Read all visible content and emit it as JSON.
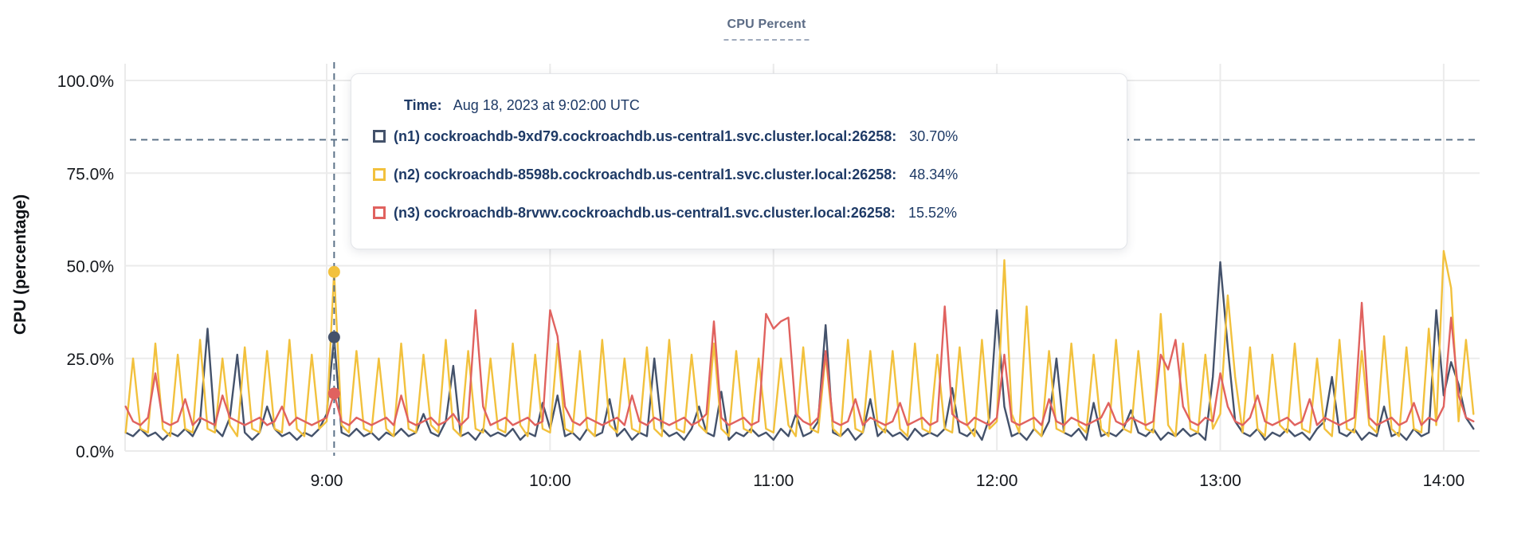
{
  "title": "CPU Percent",
  "y_axis": {
    "title": "CPU (percentage)"
  },
  "tooltip": {
    "time_label": "Time:",
    "time_value": "Aug 18, 2023 at 9:02:00 UTC",
    "rows": [
      {
        "id": "n1",
        "label": "(n1) cockroachdb-9xd79.cockroachdb.us-central1.svc.cluster.local:26258:",
        "value": "30.70%",
        "color": "#44526b"
      },
      {
        "id": "n2",
        "label": "(n2) cockroachdb-8598b.cockroachdb.us-central1.svc.cluster.local:26258:",
        "value": "48.34%",
        "color": "#f2c13d"
      },
      {
        "id": "n3",
        "label": "(n3) cockroachdb-8rvwv.cockroachdb.us-central1.svc.cluster.local:26258:",
        "value": "15.52%",
        "color": "#e0625f"
      }
    ]
  },
  "chart_data": {
    "type": "line",
    "title": "CPU Percent",
    "xlabel": "",
    "ylabel": "CPU (percentage)",
    "ylim": [
      0,
      100
    ],
    "grid": true,
    "legend_position": "tooltip",
    "y_ticks": [
      {
        "value": 0,
        "label": "0.0%"
      },
      {
        "value": 25,
        "label": "25.0%"
      },
      {
        "value": 50,
        "label": "50.0%"
      },
      {
        "value": 75,
        "label": "75.0%"
      },
      {
        "value": 100,
        "label": "100.0%"
      }
    ],
    "x_ticks": [
      {
        "minute": 540,
        "label": "9:00"
      },
      {
        "minute": 600,
        "label": "10:00"
      },
      {
        "minute": 660,
        "label": "11:00"
      },
      {
        "minute": 720,
        "label": "12:00"
      },
      {
        "minute": 780,
        "label": "13:00"
      },
      {
        "minute": 840,
        "label": "14:00"
      }
    ],
    "start_minute": 486,
    "step_minutes": 2,
    "cursor": {
      "minute": 542,
      "time_label": "Aug 18, 2023 at 9:02:00 UTC",
      "crosshair_y_percent": 84,
      "values": {
        "n1": 30.7,
        "n2": 48.34,
        "n3": 15.52
      }
    },
    "series": [
      {
        "name": "(n1) cockroachdb-9xd79.cockroachdb.us-central1.svc.cluster.local:26258",
        "color": "#44526b",
        "values": [
          5,
          4,
          6,
          4,
          5,
          3,
          5,
          4,
          6,
          4,
          8,
          33,
          6,
          4,
          9,
          26,
          5,
          3,
          5,
          12,
          6,
          4,
          5,
          3,
          5,
          4,
          6,
          10,
          30.7,
          5,
          4,
          6,
          4,
          5,
          3,
          5,
          4,
          6,
          4,
          5,
          10,
          5,
          4,
          8,
          23,
          4,
          5,
          3,
          6,
          4,
          5,
          4,
          6,
          3,
          5,
          4,
          13,
          6,
          15,
          4,
          5,
          3,
          6,
          4,
          5,
          14,
          4,
          6,
          3,
          5,
          4,
          25,
          6,
          4,
          5,
          3,
          6,
          12,
          5,
          4,
          16,
          3,
          5,
          4,
          6,
          4,
          5,
          3,
          6,
          4,
          10,
          4,
          5,
          8,
          34,
          5,
          4,
          6,
          3,
          5,
          14,
          4,
          6,
          4,
          5,
          3,
          6,
          4,
          5,
          4,
          6,
          17,
          5,
          4,
          6,
          3,
          9,
          38,
          12,
          4,
          5,
          3,
          6,
          4,
          8,
          25,
          5,
          4,
          6,
          3,
          13,
          4,
          5,
          4,
          6,
          11,
          5,
          4,
          6,
          3,
          5,
          4,
          6,
          4,
          5,
          3,
          20,
          51,
          28,
          8,
          5,
          4,
          6,
          3,
          5,
          4,
          6,
          4,
          5,
          3,
          6,
          8,
          20,
          5,
          4,
          6,
          3,
          5,
          4,
          12,
          4,
          5,
          3,
          6,
          4,
          5,
          38,
          15,
          24,
          18,
          9,
          6
        ]
      },
      {
        "name": "(n2) cockroachdb-8598b.cockroachdb.us-central1.svc.cluster.local:26258",
        "color": "#f2c13d",
        "values": [
          5,
          25,
          6,
          5,
          29,
          6,
          4,
          26,
          6,
          5,
          30,
          6,
          5,
          25,
          7,
          4,
          28,
          6,
          5,
          27,
          6,
          5,
          30,
          6,
          4,
          26,
          6,
          8,
          48.3,
          7,
          5,
          27,
          6,
          5,
          25,
          6,
          4,
          29,
          6,
          5,
          26,
          7,
          5,
          30,
          6,
          4,
          27,
          6,
          5,
          25,
          6,
          5,
          29,
          7,
          4,
          26,
          6,
          5,
          29,
          6,
          5,
          27,
          6,
          4,
          30,
          7,
          5,
          25,
          6,
          5,
          28,
          6,
          4,
          30,
          6,
          5,
          26,
          7,
          5,
          29,
          6,
          4,
          27,
          6,
          5,
          25,
          6,
          5,
          25,
          7,
          4,
          28,
          6,
          5,
          26,
          6,
          4,
          30,
          6,
          5,
          27,
          7,
          5,
          27,
          6,
          4,
          29,
          6,
          5,
          26,
          6,
          5,
          28,
          7,
          4,
          30,
          6,
          8,
          51.5,
          10,
          5,
          39,
          6,
          4,
          27,
          6,
          5,
          29,
          7,
          5,
          26,
          6,
          4,
          30,
          6,
          5,
          27,
          6,
          5,
          37,
          7,
          4,
          29,
          6,
          5,
          26,
          6,
          10,
          42,
          20,
          5,
          28,
          6,
          4,
          26,
          7,
          5,
          29,
          6,
          5,
          25,
          6,
          4,
          30,
          6,
          5,
          27,
          7,
          5,
          31,
          6,
          4,
          28,
          6,
          5,
          33,
          7,
          54,
          44,
          8,
          30,
          10
        ]
      },
      {
        "name": "(n3) cockroachdb-8rvwv.cockroachdb.us-central1.svc.cluster.local:26258",
        "color": "#e0625f",
        "values": [
          12,
          8,
          7,
          9,
          21,
          8,
          7,
          8,
          14,
          7,
          9,
          8,
          7,
          15,
          9,
          8,
          7,
          8,
          9,
          7,
          8,
          12,
          7,
          9,
          8,
          7,
          8,
          9,
          15.5,
          8,
          7,
          9,
          8,
          7,
          8,
          9,
          7,
          15,
          8,
          7,
          8,
          9,
          7,
          8,
          10,
          7,
          9,
          38,
          12,
          7,
          8,
          9,
          7,
          8,
          9,
          7,
          8,
          38,
          31,
          12,
          8,
          7,
          9,
          8,
          7,
          8,
          9,
          7,
          15,
          8,
          7,
          9,
          8,
          7,
          8,
          9,
          7,
          8,
          10,
          35,
          9,
          7,
          8,
          9,
          7,
          8,
          37,
          33,
          35,
          36,
          10,
          8,
          7,
          9,
          27,
          8,
          7,
          8,
          14,
          7,
          9,
          8,
          7,
          8,
          13,
          7,
          8,
          9,
          7,
          8,
          39,
          10,
          8,
          7,
          9,
          8,
          7,
          9,
          26,
          8,
          7,
          8,
          9,
          7,
          14,
          8,
          7,
          9,
          8,
          7,
          8,
          9,
          13,
          8,
          7,
          9,
          8,
          7,
          8,
          26,
          22,
          30,
          12,
          8,
          7,
          9,
          8,
          21,
          12,
          8,
          7,
          9,
          15,
          8,
          7,
          8,
          9,
          7,
          8,
          14,
          7,
          9,
          8,
          7,
          8,
          9,
          40,
          9,
          7,
          8,
          9,
          7,
          8,
          13,
          7,
          9,
          8,
          12,
          36,
          15,
          9,
          8
        ]
      }
    ]
  }
}
